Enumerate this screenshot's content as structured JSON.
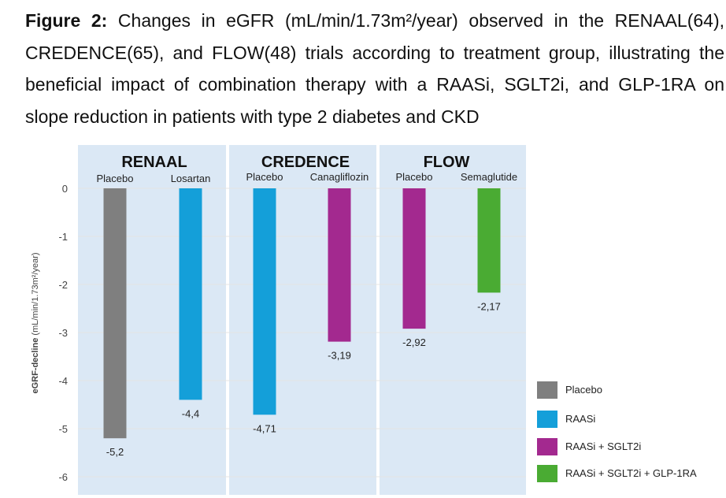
{
  "caption": {
    "figure_label": "Figure 2:",
    "text": "Changes in eGFR (mL/min/1.73m²/year) observed in the RENAAL(64), CREDENCE(65), and FLOW(48) trials according to treatment group, illustrating the beneficial impact of combination therapy with a RAASi, SGLT2i, and GLP-1RA on slope reduction in patients with type 2 diabetes and CKD"
  },
  "chart_data": {
    "type": "bar",
    "ylabel": "eGRF-decline",
    "ylabel_unit": "(mL/min/1.73m²/year)",
    "ylim": [
      -6,
      0
    ],
    "yticks": [
      "0",
      "-1",
      "-2",
      "-3",
      "-4",
      "-5",
      "-6"
    ],
    "grid": true,
    "legend_position": "bottom-right",
    "groups": [
      {
        "title": "RENAAL",
        "bars": [
          {
            "label": "Placebo",
            "value": -5.2,
            "value_label": "-5,2",
            "series": "Placebo"
          },
          {
            "label": "Losartan",
            "value": -4.4,
            "value_label": "-4,4",
            "series": "RAASi"
          }
        ]
      },
      {
        "title": "CREDENCE",
        "bars": [
          {
            "label": "Placebo",
            "value": -4.71,
            "value_label": "-4,71",
            "series": "RAASi"
          },
          {
            "label": "Canagliflozin",
            "value": -3.19,
            "value_label": "-3,19",
            "series": "RAASi + SGLT2i"
          }
        ]
      },
      {
        "title": "FLOW",
        "bars": [
          {
            "label": "Placebo",
            "value": -2.92,
            "value_label": "-2,92",
            "series": "RAASi + SGLT2i"
          },
          {
            "label": "Semaglutide",
            "value": -2.17,
            "value_label": "-2,17",
            "series": "RAASi + SGLT2i + GLP-1RA"
          }
        ]
      }
    ],
    "legend": [
      {
        "name": "Placebo",
        "color": "#7f7f7f"
      },
      {
        "name": "RAASi",
        "color": "#149fd9"
      },
      {
        "name": "RAASi + SGLT2i",
        "color": "#a3298f"
      },
      {
        "name": "RAASi + SGLT2i + GLP-1RA",
        "color": "#4aab33"
      }
    ],
    "panel_color": "#dbe8f5"
  }
}
